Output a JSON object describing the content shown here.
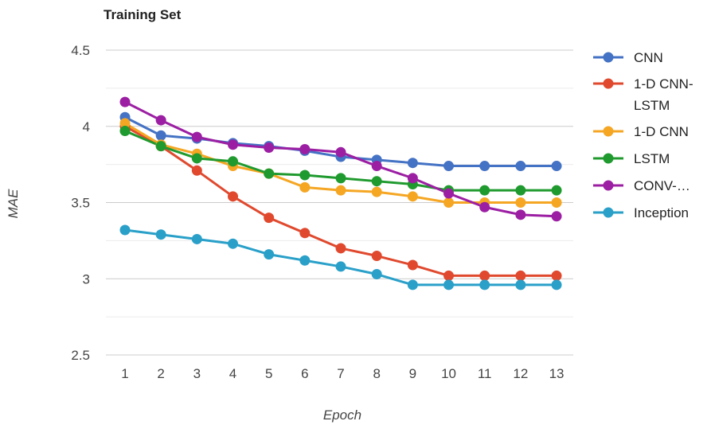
{
  "chart_data": {
    "type": "line",
    "title": "Training Set",
    "xlabel": "Epoch",
    "ylabel": "MAE",
    "x": [
      1,
      2,
      3,
      4,
      5,
      6,
      7,
      8,
      9,
      10,
      11,
      12,
      13
    ],
    "ylim": [
      2.5,
      4.5
    ],
    "yticks": [
      "2.5",
      "3",
      "3.5",
      "4",
      "4.5"
    ],
    "grid": true,
    "legend_position": "right",
    "series": [
      {
        "name": "CNN",
        "color": "#4472c4",
        "values": [
          4.06,
          3.94,
          3.92,
          3.89,
          3.87,
          3.84,
          3.8,
          3.78,
          3.76,
          3.74,
          3.74,
          3.74,
          3.74
        ]
      },
      {
        "name": "1-D CNN-LSTM",
        "color": "#e0492e",
        "values": [
          4.0,
          3.87,
          3.71,
          3.54,
          3.4,
          3.3,
          3.2,
          3.15,
          3.09,
          3.02,
          3.02,
          3.02,
          3.02
        ]
      },
      {
        "name": "1-D CNN",
        "color": "#f5a623",
        "values": [
          4.02,
          3.88,
          3.82,
          3.74,
          3.69,
          3.6,
          3.58,
          3.57,
          3.54,
          3.5,
          3.5,
          3.5,
          3.5
        ]
      },
      {
        "name": "LSTM",
        "color": "#1f9a2e",
        "values": [
          3.97,
          3.87,
          3.79,
          3.77,
          3.69,
          3.68,
          3.66,
          3.64,
          3.62,
          3.58,
          3.58,
          3.58,
          3.58
        ]
      },
      {
        "name": "CONV-…",
        "color": "#9c1fa3",
        "values": [
          4.16,
          4.04,
          3.93,
          3.88,
          3.86,
          3.85,
          3.83,
          3.74,
          3.66,
          3.56,
          3.47,
          3.42,
          3.41
        ]
      },
      {
        "name": "Inception",
        "color": "#2aa0c9",
        "values": [
          3.32,
          3.29,
          3.26,
          3.23,
          3.16,
          3.12,
          3.08,
          3.03,
          2.96,
          2.96,
          2.96,
          2.96,
          2.96
        ]
      }
    ],
    "legend_labels": [
      [
        "CNN"
      ],
      [
        "1-D CNN-",
        "LSTM"
      ],
      [
        "1-D CNN"
      ],
      [
        "LSTM"
      ],
      [
        "CONV-…"
      ],
      [
        "Inception"
      ]
    ]
  }
}
